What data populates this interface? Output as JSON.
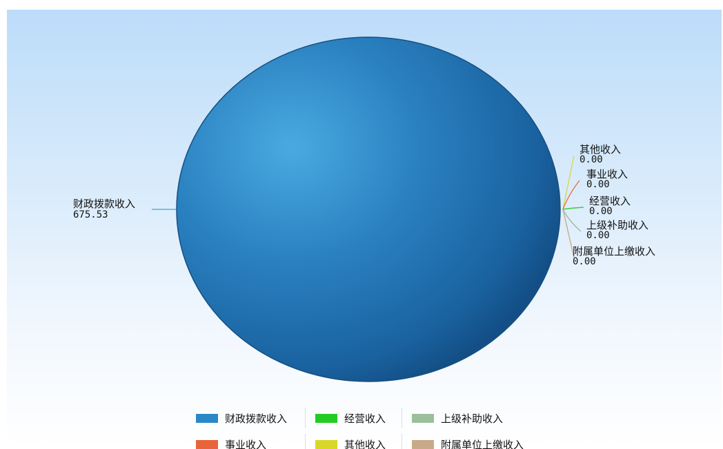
{
  "chart_data": {
    "type": "pie",
    "title": "",
    "slices": [
      {
        "name": "财政拨款收入",
        "value": 675.53,
        "value_label": "675.53",
        "color": "#2a88c8",
        "label_side": "left"
      },
      {
        "name": "其他收入",
        "value": 0,
        "value_label": "0.00",
        "color": "#d8d84a",
        "label_side": "right"
      },
      {
        "name": "事业收入",
        "value": 0,
        "value_label": "0.00",
        "color": "#e8734a",
        "label_side": "right"
      },
      {
        "name": "经营收入",
        "value": 0,
        "value_label": "0.00",
        "color": "#3ccc3c",
        "label_side": "right"
      },
      {
        "name": "上级补助收入",
        "value": 0,
        "value_label": "0.00",
        "color": "#9bbf9b",
        "label_side": "right"
      },
      {
        "name": "附属单位上缴收入",
        "value": 0,
        "value_label": "0.00",
        "color": "#c9aa88",
        "label_side": "right"
      }
    ],
    "legend": {
      "position": "bottom",
      "rows": [
        [
          {
            "name": "财政拨款收入",
            "color": "#2a88c8"
          },
          {
            "name": "经营收入",
            "color": "#22cc22"
          },
          {
            "name": "上级补助收入",
            "color": "#9bbf9b"
          }
        ],
        [
          {
            "name": "事业收入",
            "color": "#e8643a"
          },
          {
            "name": "其他收入",
            "color": "#d8d82a"
          },
          {
            "name": "附属单位上缴收入",
            "color": "#c9aa88"
          }
        ]
      ]
    }
  }
}
